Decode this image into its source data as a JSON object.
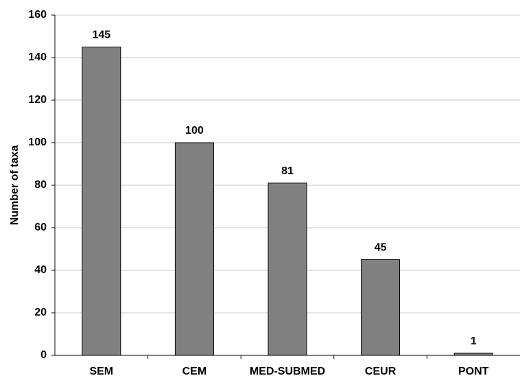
{
  "chart_data": {
    "type": "bar",
    "y_label": "Number of taxa",
    "categories": [
      "SEM",
      "CEM",
      "MED-SUBMED",
      "CEUR",
      "PONT"
    ],
    "values": [
      145,
      100,
      81,
      45,
      1
    ],
    "color": "#808080",
    "ylim": [
      0,
      160
    ],
    "yticks": [
      0,
      20,
      40,
      60,
      80,
      100,
      120,
      140,
      160
    ],
    "grid": true
  }
}
